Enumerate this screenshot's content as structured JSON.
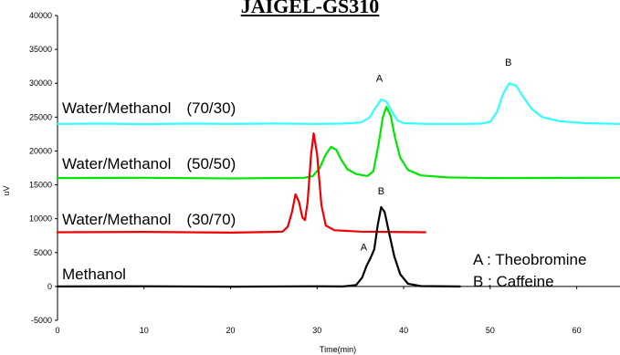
{
  "chart_data": {
    "type": "line",
    "title": "JAIGEL-GS310",
    "xlabel": "Time(min)",
    "ylabel": "uV",
    "xlim": [
      0,
      65
    ],
    "ylim": [
      -5000,
      40000
    ],
    "x_ticks": [
      0,
      10,
      20,
      30,
      40,
      50,
      60
    ],
    "y_ticks": [
      -5000,
      0,
      5000,
      10000,
      15000,
      20000,
      25000,
      30000,
      35000,
      40000
    ],
    "grid": false,
    "series": [
      {
        "name": "Water/Methanol　(70/30)",
        "color": "#33ffff",
        "points": [
          [
            0,
            24000
          ],
          [
            5,
            24050
          ],
          [
            10,
            23950
          ],
          [
            15,
            24050
          ],
          [
            20,
            24000
          ],
          [
            25,
            24050
          ],
          [
            30,
            24000
          ],
          [
            33,
            24050
          ],
          [
            35,
            24200
          ],
          [
            36,
            24900
          ],
          [
            36.8,
            26500
          ],
          [
            37.4,
            27600
          ],
          [
            38,
            27300
          ],
          [
            38.6,
            25900
          ],
          [
            39.3,
            24500
          ],
          [
            40,
            24100
          ],
          [
            43,
            24000
          ],
          [
            47,
            24000
          ],
          [
            49,
            24050
          ],
          [
            50,
            24300
          ],
          [
            50.8,
            25800
          ],
          [
            51.5,
            28500
          ],
          [
            52.2,
            30000
          ],
          [
            53,
            29600
          ],
          [
            53.8,
            28000
          ],
          [
            54.8,
            26200
          ],
          [
            56,
            25000
          ],
          [
            58,
            24400
          ],
          [
            61,
            24100
          ],
          [
            65,
            24000
          ]
        ]
      },
      {
        "name": "Water/Methanol　(50/50)",
        "color": "#00e600",
        "points": [
          [
            0,
            16000
          ],
          [
            10,
            16050
          ],
          [
            20,
            15950
          ],
          [
            25,
            16000
          ],
          [
            28.5,
            16050
          ],
          [
            29.5,
            16300
          ],
          [
            30.3,
            17500
          ],
          [
            31,
            19500
          ],
          [
            31.6,
            20600
          ],
          [
            32.2,
            20200
          ],
          [
            32.8,
            18700
          ],
          [
            33.5,
            17300
          ],
          [
            34.5,
            16600
          ],
          [
            35.8,
            16300
          ],
          [
            36.5,
            17000
          ],
          [
            37.1,
            21000
          ],
          [
            37.6,
            25000
          ],
          [
            38,
            26500
          ],
          [
            38.5,
            25200
          ],
          [
            39,
            22000
          ],
          [
            39.6,
            19000
          ],
          [
            40.5,
            17200
          ],
          [
            42,
            16400
          ],
          [
            45,
            16100
          ],
          [
            50,
            16000
          ],
          [
            65,
            16050
          ]
        ]
      },
      {
        "name": "Water/Methanol　(30/70)",
        "color": "#ee0000",
        "points": [
          [
            0,
            8000
          ],
          [
            10,
            8050
          ],
          [
            20,
            7950
          ],
          [
            25,
            8050
          ],
          [
            26,
            8100
          ],
          [
            26.6,
            8800
          ],
          [
            27.1,
            11000
          ],
          [
            27.5,
            13600
          ],
          [
            27.9,
            12500
          ],
          [
            28.3,
            10200
          ],
          [
            28.6,
            9800
          ],
          [
            28.9,
            12500
          ],
          [
            29.3,
            19500
          ],
          [
            29.6,
            22600
          ],
          [
            30,
            19500
          ],
          [
            30.5,
            12000
          ],
          [
            31,
            9000
          ],
          [
            32,
            8300
          ],
          [
            35,
            8100
          ],
          [
            38,
            8050
          ],
          [
            42.5,
            8000
          ]
        ]
      },
      {
        "name": "Methanol",
        "color": "#000000",
        "points": [
          [
            0,
            0
          ],
          [
            10,
            30
          ],
          [
            20,
            -30
          ],
          [
            30,
            20
          ],
          [
            33,
            0
          ],
          [
            34.5,
            200
          ],
          [
            35.2,
            1300
          ],
          [
            35.7,
            3000
          ],
          [
            36.2,
            4300
          ],
          [
            36.6,
            5500
          ],
          [
            37,
            9000
          ],
          [
            37.4,
            11700
          ],
          [
            37.8,
            11000
          ],
          [
            38.3,
            8000
          ],
          [
            38.9,
            4500
          ],
          [
            39.6,
            1800
          ],
          [
            40.5,
            400
          ],
          [
            42,
            50
          ],
          [
            46.5,
            0
          ]
        ]
      }
    ],
    "annotations": [
      {
        "text": "A",
        "x": 37.2,
        "y": 30200
      },
      {
        "text": "B",
        "x": 52.1,
        "y": 32600
      },
      {
        "text": "B",
        "x": 37.4,
        "y": 13600
      },
      {
        "text": "A",
        "x": 35.4,
        "y": 5300
      }
    ],
    "legend": [
      "A : Theobromine",
      "B : Caffeine"
    ]
  }
}
